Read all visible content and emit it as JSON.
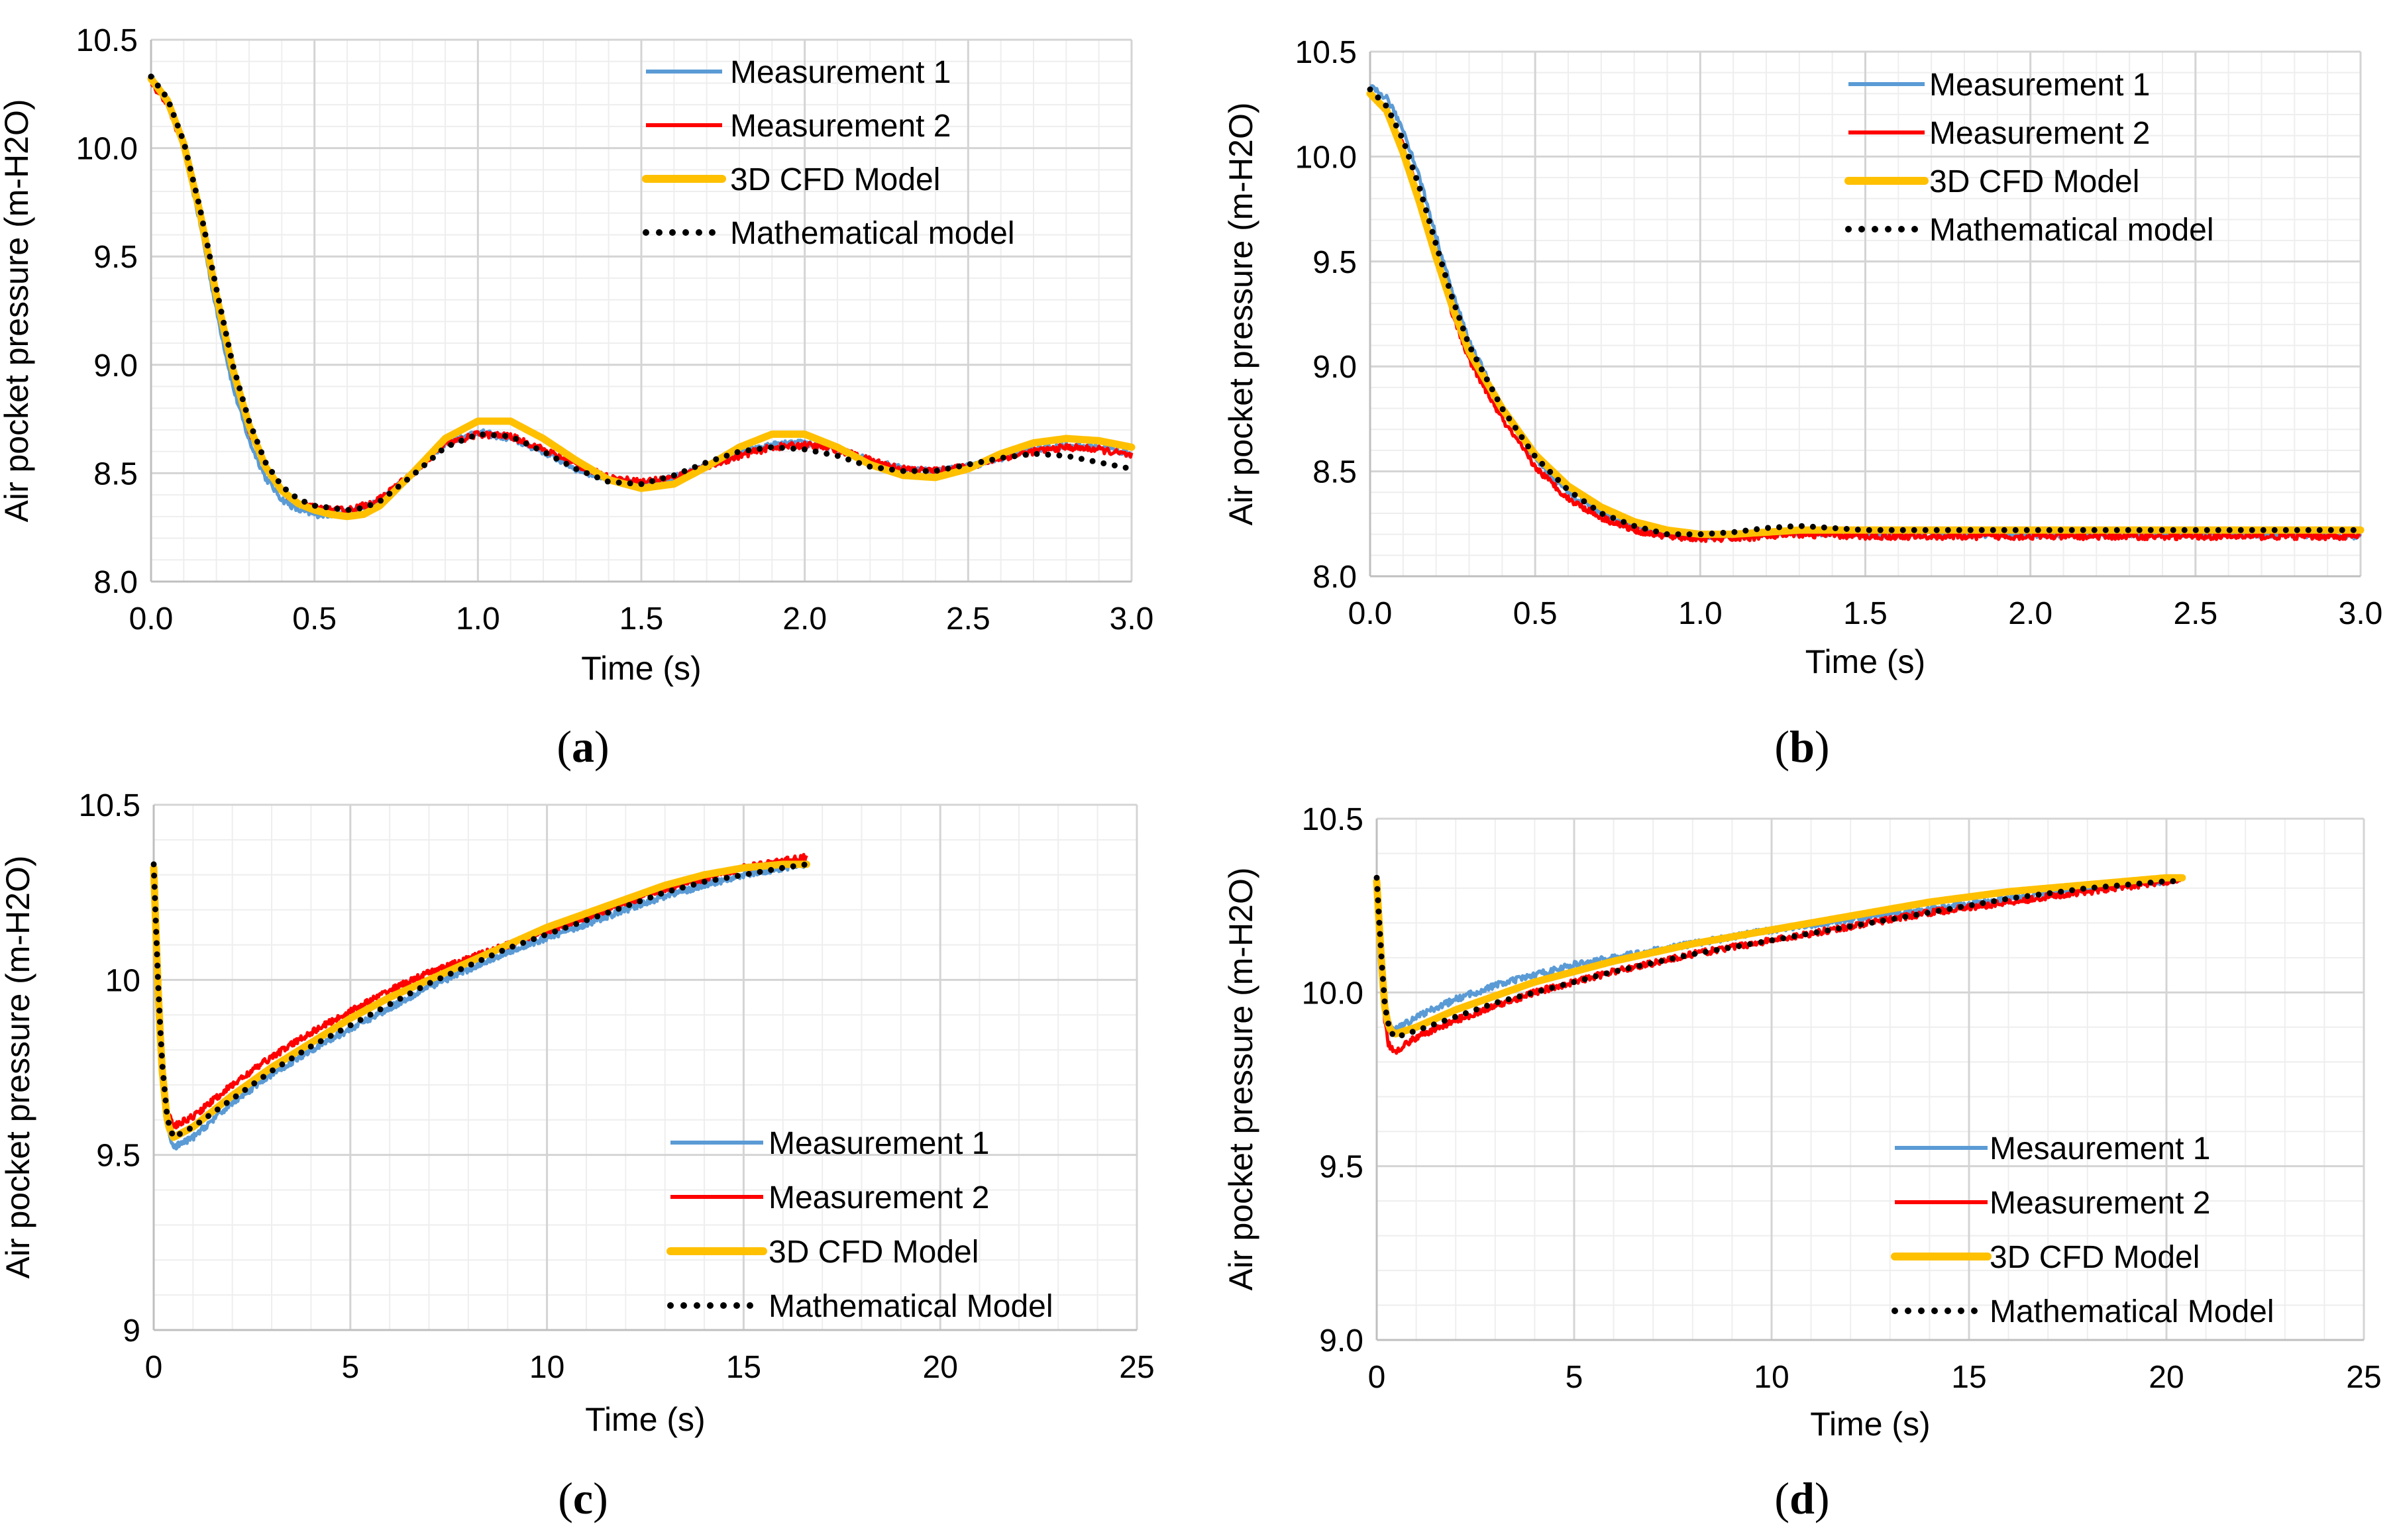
{
  "chart_data": [
    {
      "panel": "(a)",
      "type": "line",
      "xlabel": "Time (s)",
      "ylabel": "Air pocket pressure (m-H2O)",
      "xlim": [
        0,
        3
      ],
      "ylim": [
        8.0,
        10.5
      ],
      "xticks": [
        "0.0",
        "0.5",
        "1.0",
        "1.5",
        "2.0",
        "2.5",
        "3.0"
      ],
      "yticks": [
        "8.0",
        "8.5",
        "9.0",
        "9.5",
        "10.0",
        "10.5"
      ],
      "grid": true,
      "legend_position": "top-right",
      "series": [
        {
          "name": "Measurement 1",
          "color": "#5b9bd5",
          "style": "noisy",
          "x": [
            0,
            0.05,
            0.1,
            0.15,
            0.2,
            0.25,
            0.3,
            0.35,
            0.4,
            0.45,
            0.5,
            0.55,
            0.6,
            0.65,
            0.7,
            0.8,
            0.9,
            1.0,
            1.1,
            1.2,
            1.3,
            1.4,
            1.5,
            1.6,
            1.7,
            1.8,
            1.9,
            2.0,
            2.1,
            2.2,
            2.3,
            2.4,
            2.5,
            2.6,
            2.7,
            2.8,
            2.9,
            3.0
          ],
          "y": [
            10.33,
            10.22,
            10.0,
            9.65,
            9.25,
            8.9,
            8.65,
            8.48,
            8.38,
            8.33,
            8.31,
            8.31,
            8.32,
            8.34,
            8.37,
            8.5,
            8.64,
            8.69,
            8.66,
            8.6,
            8.52,
            8.47,
            8.45,
            8.48,
            8.53,
            8.59,
            8.63,
            8.64,
            8.61,
            8.56,
            8.52,
            8.51,
            8.53,
            8.57,
            8.61,
            8.63,
            8.62,
            8.59
          ]
        },
        {
          "name": "Measurement 2",
          "color": "#ff0000",
          "style": "noisy",
          "x": [
            0,
            0.05,
            0.1,
            0.15,
            0.2,
            0.25,
            0.3,
            0.35,
            0.4,
            0.45,
            0.5,
            0.55,
            0.6,
            0.65,
            0.7,
            0.8,
            0.9,
            1.0,
            1.1,
            1.2,
            1.3,
            1.4,
            1.5,
            1.6,
            1.7,
            1.8,
            1.9,
            2.0,
            2.1,
            2.2,
            2.3,
            2.4,
            2.5,
            2.6,
            2.7,
            2.8,
            2.9,
            3.0
          ],
          "y": [
            10.3,
            10.2,
            10.0,
            9.68,
            9.3,
            8.96,
            8.7,
            8.52,
            8.42,
            8.36,
            8.34,
            8.33,
            8.33,
            8.35,
            8.38,
            8.5,
            8.63,
            8.68,
            8.67,
            8.61,
            8.54,
            8.48,
            8.46,
            8.48,
            8.53,
            8.58,
            8.62,
            8.63,
            8.61,
            8.56,
            8.52,
            8.51,
            8.53,
            8.57,
            8.6,
            8.62,
            8.61,
            8.58
          ]
        },
        {
          "name": "3D CFD Model",
          "color": "#ffc000",
          "style": "thick",
          "x": [
            0,
            0.05,
            0.1,
            0.15,
            0.2,
            0.25,
            0.3,
            0.35,
            0.4,
            0.45,
            0.5,
            0.55,
            0.6,
            0.65,
            0.7,
            0.8,
            0.9,
            1.0,
            1.1,
            1.2,
            1.3,
            1.4,
            1.5,
            1.6,
            1.7,
            1.8,
            1.9,
            2.0,
            2.1,
            2.2,
            2.3,
            2.4,
            2.5,
            2.6,
            2.7,
            2.8,
            2.9,
            3.0
          ],
          "y": [
            10.32,
            10.22,
            10.02,
            9.7,
            9.32,
            8.98,
            8.72,
            8.53,
            8.42,
            8.36,
            8.33,
            8.31,
            8.3,
            8.31,
            8.35,
            8.5,
            8.66,
            8.74,
            8.74,
            8.66,
            8.56,
            8.47,
            8.43,
            8.45,
            8.53,
            8.62,
            8.68,
            8.68,
            8.62,
            8.54,
            8.49,
            8.48,
            8.52,
            8.59,
            8.64,
            8.66,
            8.65,
            8.62
          ]
        },
        {
          "name": "Mathematical model",
          "color": "#000000",
          "style": "dotted",
          "x": [
            0,
            0.05,
            0.1,
            0.15,
            0.2,
            0.25,
            0.3,
            0.35,
            0.4,
            0.45,
            0.5,
            0.55,
            0.6,
            0.65,
            0.7,
            0.8,
            0.9,
            1.0,
            1.1,
            1.2,
            1.3,
            1.4,
            1.5,
            1.6,
            1.7,
            1.8,
            1.9,
            2.0,
            2.1,
            2.2,
            2.3,
            2.4,
            2.5,
            2.6,
            2.7,
            2.8,
            2.9,
            3.0
          ],
          "y": [
            10.33,
            10.23,
            10.03,
            9.72,
            9.35,
            9.0,
            8.74,
            8.55,
            8.44,
            8.38,
            8.35,
            8.34,
            8.33,
            8.34,
            8.37,
            8.49,
            8.62,
            8.68,
            8.67,
            8.6,
            8.52,
            8.46,
            8.45,
            8.49,
            8.55,
            8.6,
            8.62,
            8.61,
            8.58,
            8.53,
            8.51,
            8.51,
            8.54,
            8.57,
            8.59,
            8.58,
            8.55,
            8.52
          ]
        }
      ]
    },
    {
      "panel": "(b)",
      "type": "line",
      "xlabel": "Time (s)",
      "ylabel": "Air pocket pressure (m-H2O)",
      "xlim": [
        0,
        3
      ],
      "ylim": [
        8.0,
        10.5
      ],
      "xticks": [
        "0.0",
        "0.5",
        "1.0",
        "1.5",
        "2.0",
        "2.5",
        "3.0"
      ],
      "yticks": [
        "8.0",
        "8.5",
        "9.0",
        "9.5",
        "10.0",
        "10.5"
      ],
      "grid": true,
      "legend_position": "top-right",
      "series": [
        {
          "name": "Measurement 1",
          "color": "#5b9bd5",
          "style": "noisy",
          "x": [
            0,
            0.05,
            0.1,
            0.15,
            0.2,
            0.25,
            0.3,
            0.4,
            0.5,
            0.6,
            0.7,
            0.8,
            0.9,
            1.0,
            1.1,
            1.2,
            1.3,
            1.5,
            1.75,
            2.0,
            2.25,
            2.5,
            2.75,
            3.0
          ],
          "y": [
            10.33,
            10.28,
            10.13,
            9.9,
            9.62,
            9.35,
            9.12,
            8.8,
            8.56,
            8.4,
            8.3,
            8.24,
            8.2,
            8.19,
            8.19,
            8.2,
            8.21,
            8.2,
            8.2,
            8.2,
            8.2,
            8.2,
            8.2,
            8.19
          ]
        },
        {
          "name": "Measurement 2",
          "color": "#ff0000",
          "style": "noisy",
          "x": [
            0,
            0.05,
            0.1,
            0.15,
            0.2,
            0.25,
            0.3,
            0.4,
            0.5,
            0.6,
            0.7,
            0.8,
            0.9,
            1.0,
            1.1,
            1.2,
            1.3,
            1.5,
            1.75,
            2.0,
            2.25,
            2.5,
            2.75,
            3.0
          ],
          "y": [
            10.3,
            10.22,
            10.05,
            9.8,
            9.52,
            9.25,
            9.03,
            8.75,
            8.52,
            8.37,
            8.28,
            8.22,
            8.19,
            8.18,
            8.18,
            8.19,
            8.2,
            8.19,
            8.19,
            8.19,
            8.19,
            8.19,
            8.19,
            8.19
          ]
        },
        {
          "name": "3D CFD Model",
          "color": "#ffc000",
          "style": "thick",
          "x": [
            0,
            0.05,
            0.1,
            0.15,
            0.2,
            0.25,
            0.3,
            0.4,
            0.5,
            0.6,
            0.7,
            0.8,
            0.9,
            1.0,
            1.1,
            1.2,
            1.3,
            1.5,
            1.75,
            2.0,
            2.25,
            2.5,
            2.75,
            3.0
          ],
          "y": [
            10.3,
            10.22,
            10.02,
            9.78,
            9.52,
            9.28,
            9.07,
            8.8,
            8.58,
            8.43,
            8.33,
            8.26,
            8.22,
            8.2,
            8.2,
            8.21,
            8.22,
            8.22,
            8.22,
            8.22,
            8.22,
            8.22,
            8.22,
            8.22
          ]
        },
        {
          "name": "Mathematical model",
          "color": "#000000",
          "style": "dotted",
          "x": [
            0,
            0.05,
            0.1,
            0.15,
            0.2,
            0.25,
            0.3,
            0.4,
            0.5,
            0.6,
            0.7,
            0.8,
            0.9,
            1.0,
            1.1,
            1.2,
            1.3,
            1.5,
            1.75,
            2.0,
            2.25,
            2.5,
            2.75,
            3.0
          ],
          "y": [
            10.32,
            10.24,
            10.08,
            9.85,
            9.58,
            9.32,
            9.1,
            8.8,
            8.57,
            8.41,
            8.3,
            8.24,
            8.2,
            8.2,
            8.21,
            8.23,
            8.24,
            8.22,
            8.22,
            8.22,
            8.22,
            8.22,
            8.22,
            8.22
          ]
        }
      ]
    },
    {
      "panel": "(c)",
      "type": "line",
      "xlabel": "Time (s)",
      "ylabel": "Air pocket pressure (m-H2O)",
      "xlim": [
        0,
        25
      ],
      "ylim": [
        9,
        10.5
      ],
      "xticks": [
        "0",
        "5",
        "10",
        "15",
        "20",
        "25"
      ],
      "yticks": [
        "9",
        "9.5",
        "10",
        "10.5"
      ],
      "grid": true,
      "legend_position": "bottom-right",
      "series": [
        {
          "name": "Measurement 1",
          "color": "#5b9bd5",
          "style": "noisy",
          "x": [
            0,
            0.1,
            0.2,
            0.35,
            0.5,
            1,
            2,
            3,
            4,
            5,
            6,
            7,
            8,
            9,
            10,
            11,
            12,
            13,
            14,
            15,
            16,
            16.6
          ],
          "y": [
            10.33,
            10.0,
            9.75,
            9.58,
            9.52,
            9.55,
            9.65,
            9.73,
            9.8,
            9.86,
            9.92,
            9.98,
            10.03,
            10.08,
            10.12,
            10.16,
            10.2,
            10.24,
            10.27,
            10.3,
            10.32,
            10.33
          ]
        },
        {
          "name": "Measurement 2",
          "color": "#ff0000",
          "style": "noisy",
          "x": [
            0,
            0.1,
            0.2,
            0.35,
            0.5,
            1,
            2,
            3,
            4,
            5,
            6,
            7,
            8,
            9,
            10,
            11,
            12,
            13,
            14,
            15,
            16,
            16.6
          ],
          "y": [
            10.32,
            10.02,
            9.8,
            9.63,
            9.58,
            9.61,
            9.7,
            9.78,
            9.85,
            9.91,
            9.97,
            10.02,
            10.06,
            10.1,
            10.14,
            10.18,
            10.22,
            10.26,
            10.29,
            10.32,
            10.34,
            10.35
          ]
        },
        {
          "name": "3D CFD Model",
          "color": "#ffc000",
          "style": "thick",
          "x": [
            0,
            0.1,
            0.2,
            0.35,
            0.5,
            1,
            2,
            3,
            4,
            5,
            6,
            7,
            8,
            9,
            10,
            11,
            12,
            13,
            14,
            15,
            16,
            16.6
          ],
          "y": [
            10.32,
            10.0,
            9.76,
            9.59,
            9.55,
            9.58,
            9.67,
            9.75,
            9.82,
            9.89,
            9.95,
            10.0,
            10.05,
            10.1,
            10.15,
            10.19,
            10.23,
            10.27,
            10.3,
            10.32,
            10.33,
            10.33
          ]
        },
        {
          "name": "Mathematical Model",
          "color": "#000000",
          "style": "dotted",
          "x": [
            0,
            0.1,
            0.2,
            0.35,
            0.5,
            1,
            2,
            3,
            4,
            5,
            6,
            7,
            8,
            9,
            10,
            11,
            12,
            13,
            14,
            15,
            16,
            16.6
          ],
          "y": [
            10.33,
            10.02,
            9.78,
            9.6,
            9.55,
            9.58,
            9.66,
            9.74,
            9.81,
            9.87,
            9.93,
            9.99,
            10.04,
            10.09,
            10.13,
            10.17,
            10.21,
            10.25,
            10.28,
            10.3,
            10.32,
            10.33
          ]
        }
      ]
    },
    {
      "panel": "(d)",
      "type": "line",
      "xlabel": "Time (s)",
      "ylabel": "Air pocket pressure (m-H2O)",
      "xlim": [
        0,
        25
      ],
      "ylim": [
        9.0,
        10.5
      ],
      "xticks": [
        "0",
        "5",
        "10",
        "15",
        "20",
        "25"
      ],
      "yticks": [
        "9.0",
        "9.5",
        "10.0",
        "10.5"
      ],
      "grid": true,
      "legend_position": "bottom-right",
      "series": [
        {
          "name": "Mesaurement 1",
          "color": "#5b9bd5",
          "style": "noisy",
          "x": [
            0,
            0.1,
            0.2,
            0.3,
            0.45,
            1,
            2,
            3,
            4,
            5,
            6,
            8,
            10,
            12,
            14,
            16,
            18,
            20,
            20.4
          ],
          "y": [
            10.33,
            10.15,
            10.0,
            9.92,
            9.89,
            9.93,
            9.98,
            10.02,
            10.05,
            10.08,
            10.1,
            10.14,
            10.18,
            10.21,
            10.24,
            10.27,
            10.3,
            10.32,
            10.33
          ]
        },
        {
          "name": "Measurement 2",
          "color": "#ff0000",
          "style": "noisy",
          "x": [
            0,
            0.1,
            0.2,
            0.3,
            0.45,
            1,
            2,
            3,
            4,
            5,
            6,
            8,
            10,
            12,
            14,
            16,
            18,
            20,
            20.4
          ],
          "y": [
            10.32,
            10.1,
            9.92,
            9.85,
            9.83,
            9.87,
            9.92,
            9.96,
            10.0,
            10.03,
            10.06,
            10.11,
            10.15,
            10.19,
            10.23,
            10.26,
            10.29,
            10.32,
            10.33
          ]
        },
        {
          "name": "3D CFD Model",
          "color": "#ffc000",
          "style": "thick",
          "x": [
            0,
            0.1,
            0.2,
            0.3,
            0.45,
            1,
            2,
            3,
            4,
            5,
            6,
            8,
            10,
            12,
            14,
            16,
            18,
            20,
            20.4
          ],
          "y": [
            10.32,
            10.12,
            9.96,
            9.9,
            9.88,
            9.9,
            9.95,
            9.99,
            10.03,
            10.06,
            10.09,
            10.14,
            10.18,
            10.22,
            10.26,
            10.29,
            10.31,
            10.33,
            10.33
          ]
        },
        {
          "name": "Mathematical Model",
          "color": "#000000",
          "style": "dotted",
          "x": [
            0,
            0.1,
            0.2,
            0.3,
            0.45,
            1,
            2,
            3,
            4,
            5,
            6,
            8,
            10,
            12,
            14,
            16,
            18,
            20,
            20.4
          ],
          "y": [
            10.33,
            10.13,
            9.97,
            9.9,
            9.87,
            9.89,
            9.93,
            9.97,
            10.0,
            10.03,
            10.06,
            10.11,
            10.15,
            10.19,
            10.23,
            10.27,
            10.3,
            10.32,
            10.32
          ]
        }
      ]
    }
  ]
}
